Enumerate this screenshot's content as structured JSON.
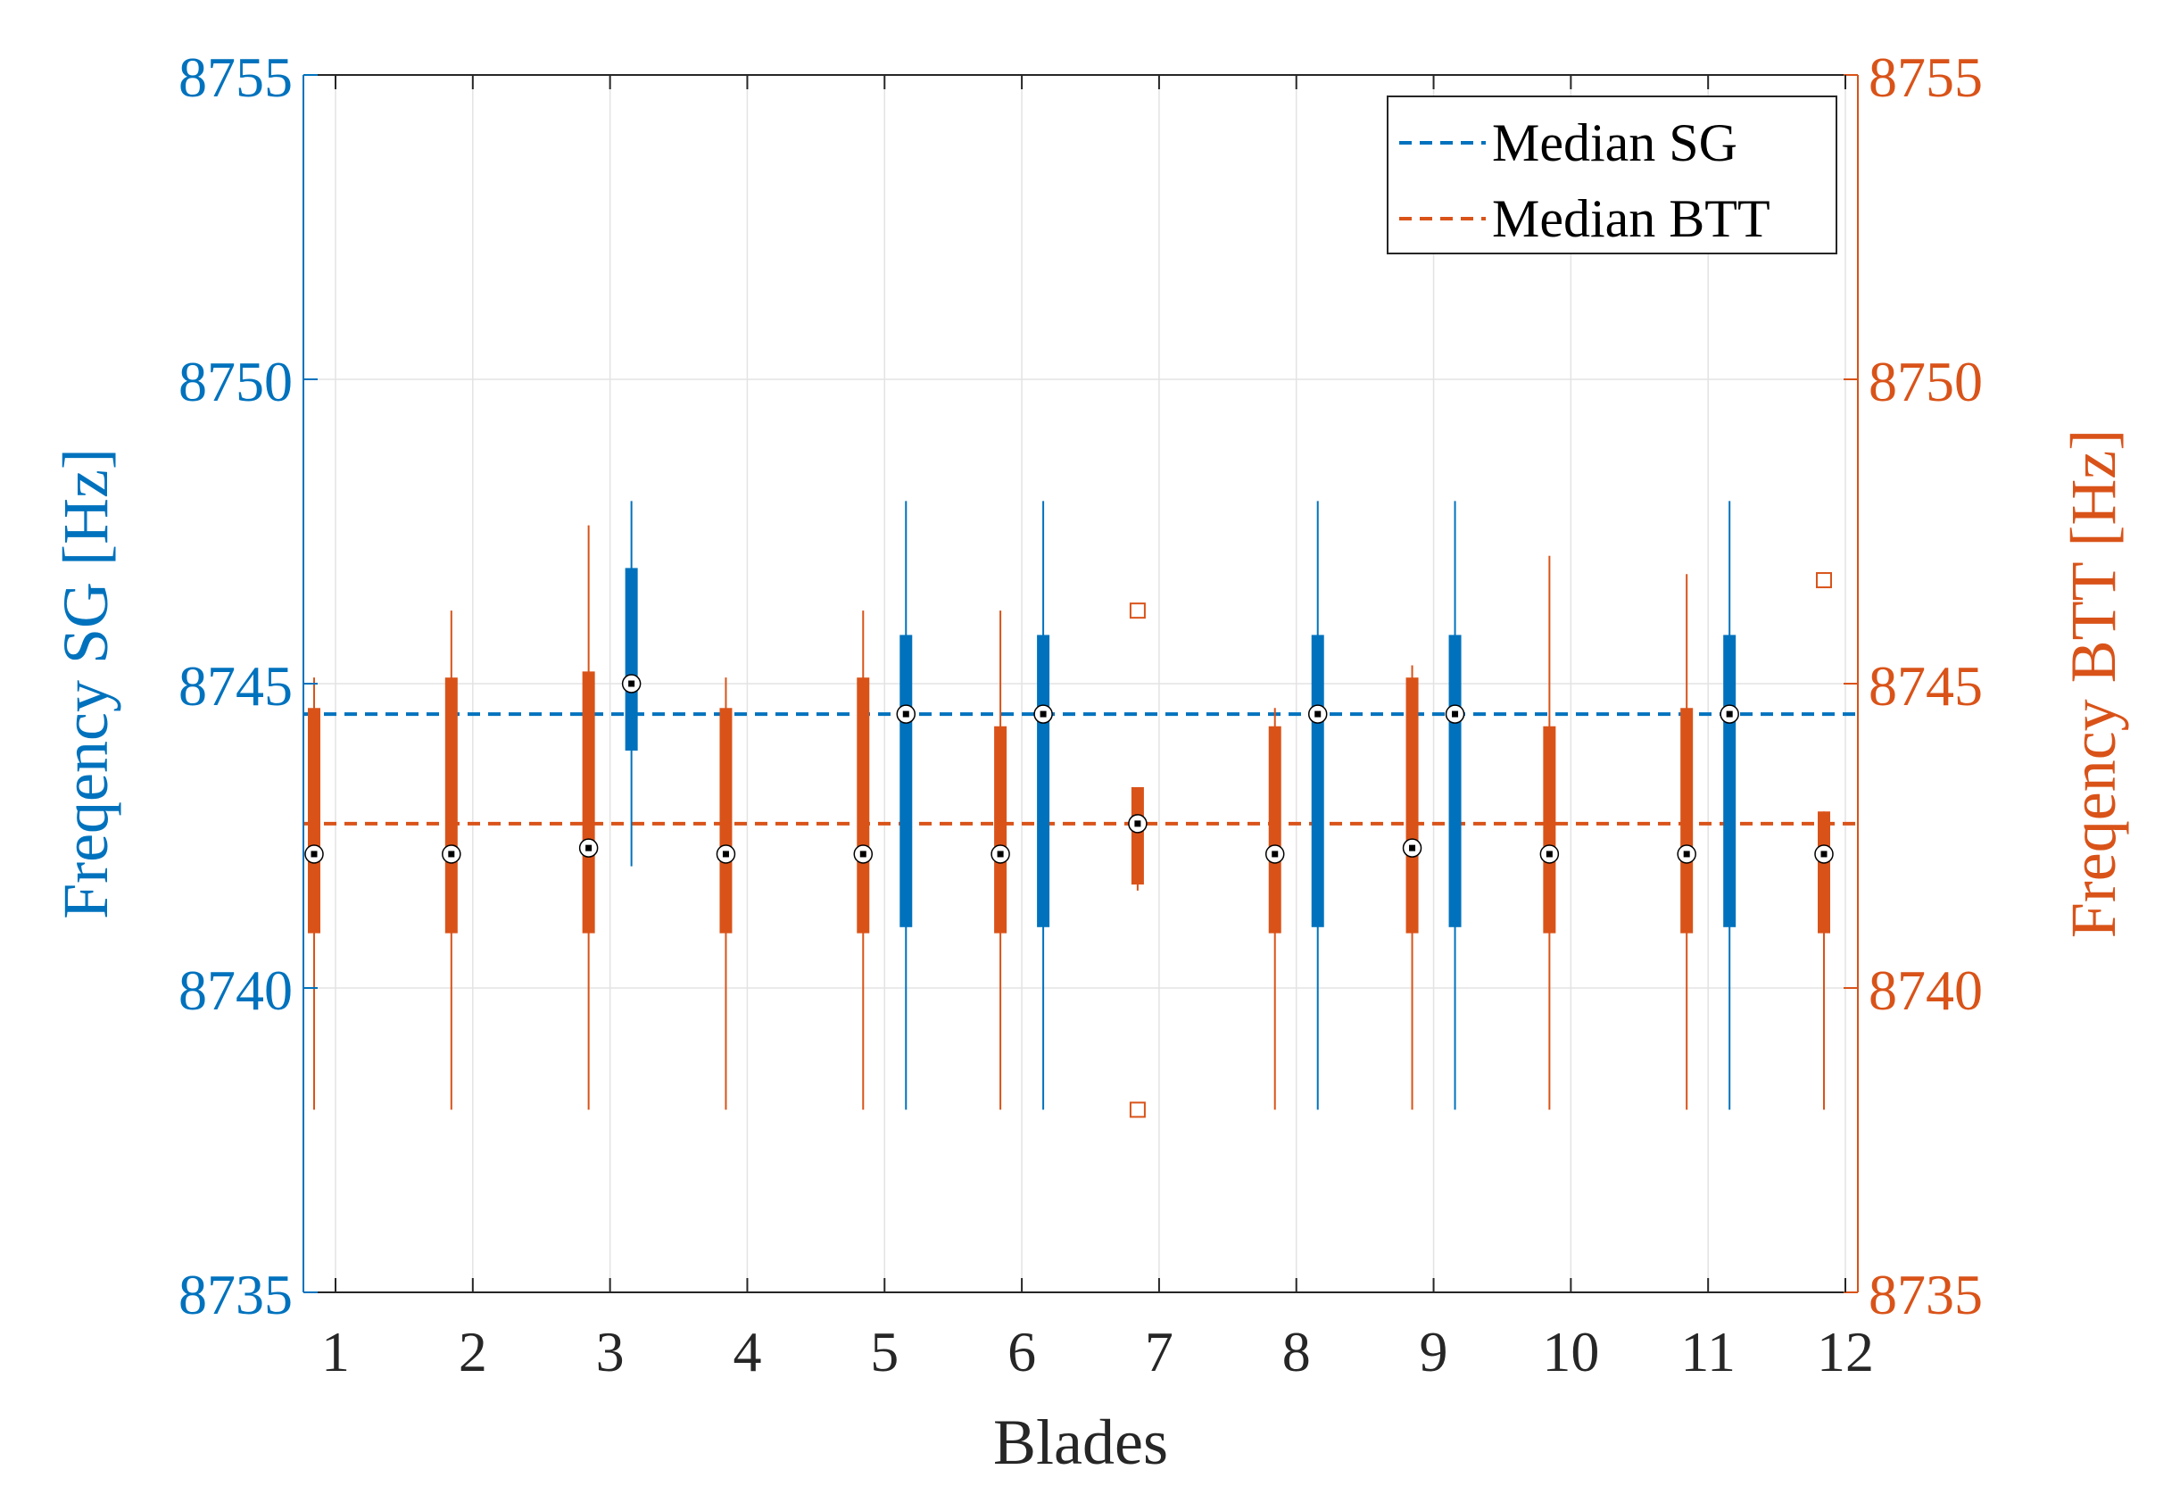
{
  "chart_data": {
    "type": "boxplot",
    "xlabel": "Blades",
    "ylabel_left": "Freqency SG [Hz]",
    "ylabel_right": "Freqency BTT [Hz]",
    "ylim": [
      8735,
      8755
    ],
    "yticks": [
      8735,
      8740,
      8745,
      8750,
      8755
    ],
    "categories": [
      "1",
      "2",
      "3",
      "4",
      "5",
      "6",
      "7",
      "8",
      "9",
      "10",
      "11",
      "12"
    ],
    "grid": true,
    "legend_position": "top-right",
    "colors": {
      "sg": "#0072bd",
      "btt": "#d95319",
      "axis": "#262626"
    },
    "legend": [
      {
        "label": "Median SG",
        "series": "sg"
      },
      {
        "label": "Median BTT",
        "series": "btt"
      }
    ],
    "medians": {
      "sg": 8744.5,
      "btt": 8742.7
    },
    "series": [
      {
        "name": "SG",
        "color": "#0072bd",
        "boxes": [
          {
            "blade": 3,
            "whisker_low": 8742,
            "q1": 8743.9,
            "median": 8745,
            "q3": 8746.9,
            "whisker_high": 8748,
            "outliers": []
          },
          {
            "blade": 5,
            "whisker_low": 8738,
            "q1": 8741,
            "median": 8744.5,
            "q3": 8745.8,
            "whisker_high": 8748,
            "outliers": []
          },
          {
            "blade": 6,
            "whisker_low": 8738,
            "q1": 8741,
            "median": 8744.5,
            "q3": 8745.8,
            "whisker_high": 8748,
            "outliers": []
          },
          {
            "blade": 8,
            "whisker_low": 8738,
            "q1": 8741,
            "median": 8744.5,
            "q3": 8745.8,
            "whisker_high": 8748,
            "outliers": []
          },
          {
            "blade": 9,
            "whisker_low": 8738,
            "q1": 8741,
            "median": 8744.5,
            "q3": 8745.8,
            "whisker_high": 8748,
            "outliers": []
          },
          {
            "blade": 11,
            "whisker_low": 8738,
            "q1": 8741,
            "median": 8744.5,
            "q3": 8745.8,
            "whisker_high": 8748,
            "outliers": []
          }
        ]
      },
      {
        "name": "BTT",
        "color": "#d95319",
        "boxes": [
          {
            "blade": 1,
            "whisker_low": 8738,
            "q1": 8740.9,
            "median": 8742.2,
            "q3": 8744.6,
            "whisker_high": 8745.1,
            "outliers": []
          },
          {
            "blade": 2,
            "whisker_low": 8738,
            "q1": 8740.9,
            "median": 8742.2,
            "q3": 8745.1,
            "whisker_high": 8746.2,
            "outliers": []
          },
          {
            "blade": 3,
            "whisker_low": 8738,
            "q1": 8740.9,
            "median": 8742.3,
            "q3": 8745.2,
            "whisker_high": 8747.6,
            "outliers": []
          },
          {
            "blade": 4,
            "whisker_low": 8738,
            "q1": 8740.9,
            "median": 8742.2,
            "q3": 8744.6,
            "whisker_high": 8745.1,
            "outliers": []
          },
          {
            "blade": 5,
            "whisker_low": 8738,
            "q1": 8740.9,
            "median": 8742.2,
            "q3": 8745.1,
            "whisker_high": 8746.2,
            "outliers": []
          },
          {
            "blade": 6,
            "whisker_low": 8738,
            "q1": 8740.9,
            "median": 8742.2,
            "q3": 8744.3,
            "whisker_high": 8746.2,
            "outliers": []
          },
          {
            "blade": 7,
            "whisker_low": 8741.6,
            "q1": 8741.7,
            "median": 8742.7,
            "q3": 8743.3,
            "whisker_high": 8743.3,
            "outliers": [
              8746.2,
              8738
            ]
          },
          {
            "blade": 8,
            "whisker_low": 8738,
            "q1": 8740.9,
            "median": 8742.2,
            "q3": 8744.3,
            "whisker_high": 8744.6,
            "outliers": []
          },
          {
            "blade": 9,
            "whisker_low": 8738,
            "q1": 8740.9,
            "median": 8742.3,
            "q3": 8745.1,
            "whisker_high": 8745.3,
            "outliers": []
          },
          {
            "blade": 10,
            "whisker_low": 8738,
            "q1": 8740.9,
            "median": 8742.2,
            "q3": 8744.3,
            "whisker_high": 8747.1,
            "outliers": []
          },
          {
            "blade": 11,
            "whisker_low": 8738,
            "q1": 8740.9,
            "median": 8742.2,
            "q3": 8744.6,
            "whisker_high": 8746.8,
            "outliers": []
          },
          {
            "blade": 12,
            "whisker_low": 8738,
            "q1": 8740.9,
            "median": 8742.2,
            "q3": 8742.9,
            "whisker_high": 8742.9,
            "outliers": [
              8746.7
            ]
          }
        ]
      }
    ]
  }
}
